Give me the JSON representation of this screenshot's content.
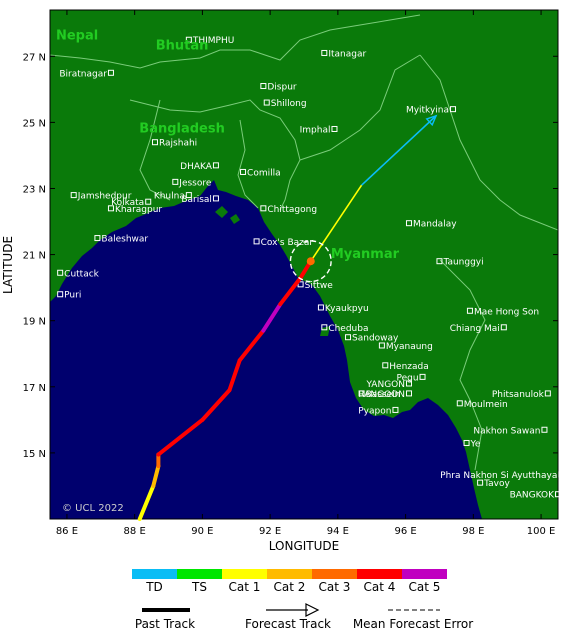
{
  "map": {
    "xlabel": "LONGITUDE",
    "ylabel": "LATITUDE",
    "copyright": "© UCL 2022",
    "lon_range": [
      85.5,
      100.5
    ],
    "lat_range": [
      13.0,
      28.4
    ],
    "lon_ticks": [
      {
        "value": 86,
        "label": "86 E"
      },
      {
        "value": 88,
        "label": "88 E"
      },
      {
        "value": 90,
        "label": "90 E"
      },
      {
        "value": 92,
        "label": "92 E"
      },
      {
        "value": 94,
        "label": "94 E"
      },
      {
        "value": 96,
        "label": "96 E"
      },
      {
        "value": 98,
        "label": "98 E"
      },
      {
        "value": 100,
        "label": "100 E"
      }
    ],
    "lat_ticks": [
      {
        "value": 15,
        "label": "15 N"
      },
      {
        "value": 17,
        "label": "17 N"
      },
      {
        "value": 19,
        "label": "19 N"
      },
      {
        "value": 21,
        "label": "21 N"
      },
      {
        "value": 23,
        "label": "23 N"
      },
      {
        "value": 25,
        "label": "25 N"
      },
      {
        "value": 27,
        "label": "27 N"
      }
    ],
    "countries": [
      {
        "name": "Nepal",
        "lon": 86.3,
        "lat": 27.5
      },
      {
        "name": "Bhutan",
        "lon": 89.4,
        "lat": 27.2
      },
      {
        "name": "Bangladesh",
        "lon": 89.4,
        "lat": 24.7
      },
      {
        "name": "Myanmar",
        "lon": 94.8,
        "lat": 20.9
      }
    ],
    "cities": [
      {
        "name": "THIMPHU",
        "lon": 89.6,
        "lat": 27.5,
        "dx": 4,
        "anchor": "start"
      },
      {
        "name": "Itanagar",
        "lon": 93.6,
        "lat": 27.1,
        "dx": 4,
        "anchor": "start"
      },
      {
        "name": "Biratnagar",
        "lon": 87.3,
        "lat": 26.5,
        "dx": -4,
        "anchor": "end"
      },
      {
        "name": "Dispur",
        "lon": 91.8,
        "lat": 26.1,
        "dx": 4,
        "anchor": "start"
      },
      {
        "name": "Shillong",
        "lon": 91.9,
        "lat": 25.6,
        "dx": 4,
        "anchor": "start"
      },
      {
        "name": "Myitkyina",
        "lon": 97.4,
        "lat": 25.4,
        "dx": -4,
        "anchor": "end"
      },
      {
        "name": "Imphal",
        "lon": 93.9,
        "lat": 24.8,
        "dx": -4,
        "anchor": "end"
      },
      {
        "name": "Rajshahi",
        "lon": 88.6,
        "lat": 24.4,
        "dx": 4,
        "anchor": "start"
      },
      {
        "name": "DHAKA",
        "lon": 90.4,
        "lat": 23.7,
        "dx": -4,
        "anchor": "end"
      },
      {
        "name": "Comilla",
        "lon": 91.2,
        "lat": 23.5,
        "dx": 4,
        "anchor": "start"
      },
      {
        "name": "Jessore",
        "lon": 89.2,
        "lat": 23.2,
        "dx": 4,
        "anchor": "start"
      },
      {
        "name": "Khulna",
        "lon": 89.6,
        "lat": 22.8,
        "dx": -4,
        "anchor": "end"
      },
      {
        "name": "Jamshedpur",
        "lon": 86.2,
        "lat": 22.8,
        "dx": 4,
        "anchor": "start"
      },
      {
        "name": "Barisal",
        "lon": 90.4,
        "lat": 22.7,
        "dx": -4,
        "anchor": "end"
      },
      {
        "name": "Kolkata",
        "lon": 88.4,
        "lat": 22.6,
        "dx": -4,
        "anchor": "end"
      },
      {
        "name": "Kharagpur",
        "lon": 87.3,
        "lat": 22.4,
        "dx": 4,
        "anchor": "start"
      },
      {
        "name": "Chittagong",
        "lon": 91.8,
        "lat": 22.4,
        "dx": 4,
        "anchor": "start"
      },
      {
        "name": "Mandalay",
        "lon": 96.1,
        "lat": 21.95,
        "dx": 4,
        "anchor": "start"
      },
      {
        "name": "Baleshwar",
        "lon": 86.9,
        "lat": 21.5,
        "dx": 4,
        "anchor": "start"
      },
      {
        "name": "Cox's Bazar",
        "lon": 91.6,
        "lat": 21.4,
        "dx": 4,
        "anchor": "start"
      },
      {
        "name": "Taunggyi",
        "lon": 97.0,
        "lat": 20.8,
        "dx": 4,
        "anchor": "start"
      },
      {
        "name": "Cuttack",
        "lon": 85.8,
        "lat": 20.45,
        "dx": 4,
        "anchor": "start"
      },
      {
        "name": "Sittwe",
        "lon": 92.9,
        "lat": 20.1,
        "dx": 4,
        "anchor": "start"
      },
      {
        "name": "Puri",
        "lon": 85.8,
        "lat": 19.8,
        "dx": 4,
        "anchor": "start"
      },
      {
        "name": "Kyaukpyu",
        "lon": 93.5,
        "lat": 19.4,
        "dx": 4,
        "anchor": "start"
      },
      {
        "name": "Mae Hong Son",
        "lon": 97.9,
        "lat": 19.3,
        "dx": 4,
        "anchor": "start"
      },
      {
        "name": "Cheduba",
        "lon": 93.6,
        "lat": 18.8,
        "dx": 4,
        "anchor": "start"
      },
      {
        "name": "Chiang Mai",
        "lon": 98.9,
        "lat": 18.8,
        "dx": -4,
        "anchor": "end"
      },
      {
        "name": "Sandoway",
        "lon": 94.3,
        "lat": 18.5,
        "dx": 4,
        "anchor": "start"
      },
      {
        "name": "Myanaung",
        "lon": 95.3,
        "lat": 18.25,
        "dx": 4,
        "anchor": "start"
      },
      {
        "name": "Henzada",
        "lon": 95.4,
        "lat": 17.65,
        "dx": 4,
        "anchor": "start"
      },
      {
        "name": "Pegu",
        "lon": 96.5,
        "lat": 17.3,
        "dx": -4,
        "anchor": "end"
      },
      {
        "name": "YANGON",
        "lon": 96.1,
        "lat": 17.1,
        "dx": -4,
        "anchor": "end"
      },
      {
        "name": "RANGOON",
        "lon": 96.1,
        "lat": 16.8,
        "dx": -4,
        "anchor": "end"
      },
      {
        "name": "Phitsanulok",
        "lon": 100.2,
        "lat": 16.8,
        "dx": -4,
        "anchor": "end"
      },
      {
        "name": "Bassein",
        "lon": 94.7,
        "lat": 16.8,
        "dx": 4,
        "anchor": "start"
      },
      {
        "name": "Moulmein",
        "lon": 97.6,
        "lat": 16.5,
        "dx": 4,
        "anchor": "start"
      },
      {
        "name": "Pyapon",
        "lon": 95.7,
        "lat": 16.3,
        "dx": -4,
        "anchor": "end"
      },
      {
        "name": "Nakhon Sawan",
        "lon": 100.1,
        "lat": 15.7,
        "dx": -4,
        "anchor": "end"
      },
      {
        "name": "Ye",
        "lon": 97.8,
        "lat": 15.3,
        "dx": 4,
        "anchor": "start"
      },
      {
        "name": "Phra Nakhon Si Ayutthaya",
        "lon": 100.6,
        "lat": 14.35,
        "dx": -4,
        "anchor": "end"
      },
      {
        "name": "Tavoy",
        "lon": 98.2,
        "lat": 14.1,
        "dx": 4,
        "anchor": "start"
      },
      {
        "name": "BANGKOK",
        "lon": 100.5,
        "lat": 13.75,
        "dx": -4,
        "anchor": "end"
      }
    ],
    "past_track": [
      {
        "lon": 88.15,
        "lat": 13.0,
        "cat": "Cat 1"
      },
      {
        "lon": 88.55,
        "lat": 14.0,
        "cat": "Cat 1"
      },
      {
        "lon": 88.7,
        "lat": 14.6,
        "cat": "Cat 2"
      },
      {
        "lon": 88.7,
        "lat": 14.95,
        "cat": "Cat 3"
      },
      {
        "lon": 90.0,
        "lat": 16.0,
        "cat": "Cat 4"
      },
      {
        "lon": 90.8,
        "lat": 16.9,
        "cat": "Cat 4"
      },
      {
        "lon": 91.1,
        "lat": 17.8,
        "cat": "Cat 4"
      },
      {
        "lon": 91.8,
        "lat": 18.7,
        "cat": "Cat 4"
      },
      {
        "lon": 92.3,
        "lat": 19.5,
        "cat": "Cat 5"
      },
      {
        "lon": 92.9,
        "lat": 20.3,
        "cat": "Cat 4"
      },
      {
        "lon": 93.2,
        "lat": 20.8,
        "cat": "Cat 4"
      }
    ],
    "forecast_track": [
      {
        "lon": 93.2,
        "lat": 20.8,
        "cat": "Cat 3"
      },
      {
        "lon": 94.7,
        "lat": 23.1,
        "cat": "Cat 1"
      },
      {
        "lon": 96.9,
        "lat": 25.2,
        "cat": "TD"
      }
    ],
    "current_position": {
      "lon": 93.2,
      "lat": 20.8
    },
    "error_circle_radius_deg": 0.6
  },
  "legend": {
    "categories": [
      {
        "label": "TD",
        "color": "#0abdf5"
      },
      {
        "label": "TS",
        "color": "#00e600"
      },
      {
        "label": "Cat 1",
        "color": "#ffff00"
      },
      {
        "label": "Cat 2",
        "color": "#ffbb00"
      },
      {
        "label": "Cat 3",
        "color": "#ff6a00"
      },
      {
        "label": "Cat 4",
        "color": "#ff0000"
      },
      {
        "label": "Cat 5",
        "color": "#c000c0"
      }
    ],
    "past_track_label": "Past Track",
    "forecast_track_label": "Forecast Track",
    "error_label": "Mean Forecast Error"
  },
  "colors": {
    "ocean": "#00006e",
    "land": "#0a7a0a",
    "country_label": "#22cc22",
    "border": "#7acc7a"
  }
}
